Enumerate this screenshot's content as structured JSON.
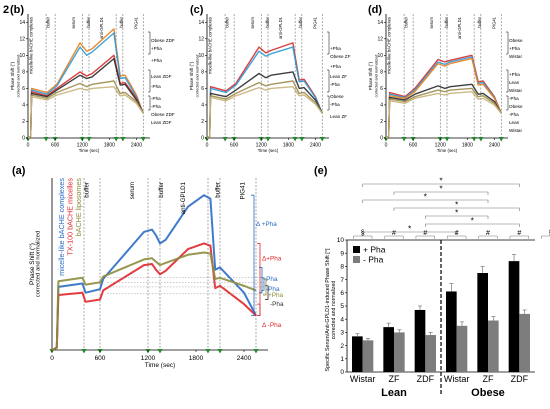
{
  "figure_number": "2",
  "panels": {
    "b": {
      "label": "(b)",
      "ylabel": [
        "Phase Shift (°)",
        "corrected and normalized"
      ],
      "xlabel": "Time (sec)",
      "xticks": [
        "0",
        "600",
        "1200",
        "1800",
        "2400"
      ],
      "yticks": [
        "0",
        "2",
        "4",
        "6",
        "8",
        "10",
        "12",
        "14"
      ],
      "steps": [
        "micelle-like bACHE complexes",
        "buffer",
        "serum",
        "buffer",
        "anti-GPLD1",
        "buffer",
        "PIG41"
      ],
      "annotations": [
        "Obese ZDF",
        "+Pha",
        "+Pha",
        "Lean ZDF",
        "-Pha",
        "-Pha",
        "-Pha",
        "Obese ZDF",
        "Lean ZDF"
      ]
    },
    "c": {
      "label": "(c)",
      "ylabel": [
        "Phase Shift (°)",
        "corrected and normalized"
      ],
      "xlabel": "Time (sec)",
      "xticks": [
        "0",
        "600",
        "1200",
        "1800",
        "2400"
      ],
      "yticks": [
        "0",
        "2",
        "4",
        "6",
        "8",
        "10",
        "12",
        "14"
      ],
      "steps": [
        "micelle-like bACHE complexes",
        "buffer",
        "serum",
        "buffer",
        "anti-GPLD1",
        "buffer",
        "PIG41"
      ],
      "annotations": [
        "+Pha",
        "Obese ZF",
        "+Pha",
        "Lean ZF",
        "-Pha",
        "Obese",
        "-Pha",
        "Lean ZF"
      ]
    },
    "d": {
      "label": "(d)",
      "ylabel": [
        "Phase Shift (°)",
        "corrected and normalized"
      ],
      "xlabel": "Time (sec)",
      "xticks": [
        "0",
        "600",
        "1200",
        "1800",
        "2400"
      ],
      "yticks": [
        "0",
        "2",
        "4",
        "6",
        "8",
        "10",
        "12",
        "14"
      ],
      "steps": [
        "micelle-like bACHE complexes",
        "buffer",
        "serum",
        "buffer",
        "anti-GPLD1",
        "buffer",
        "PIG41"
      ],
      "annotations": [
        "Obese",
        "+Pha",
        "Wistar",
        "+Pha",
        "Lean",
        "Wistar",
        "-Pha",
        "Obese",
        "-Pha",
        "Lean",
        "Wistar"
      ]
    },
    "a": {
      "label": "(a)",
      "ylabel": [
        "Phase Shift (°)",
        "corrected and normalized"
      ],
      "xlabel": "Time (sec)",
      "xticks": [
        "0",
        "600",
        "1200",
        "1800",
        "2400"
      ],
      "legend": [
        {
          "text": "micelle-like bACHE complexes",
          "color": "#2b6cc4"
        },
        {
          "text": "TX-100 bACHE micelles",
          "color": "#e0262a"
        },
        {
          "text": "bACHE liposomes",
          "color": "#8c8c3c"
        }
      ],
      "steps": [
        "buffer",
        "serum",
        "buffer",
        "anti-GPLD1",
        "buffer",
        "PIG41"
      ],
      "brackets": [
        "Δ +Pha",
        "Δ+Pha",
        "-Pha",
        "-Pha",
        "+Pha",
        "-Pha",
        "Δ -Pha"
      ]
    },
    "e": {
      "label": "(e)",
      "ylabel": [
        "Specific Serum/Anti-GPLD1-induced Phase Shift [°]",
        "corrected and normalized"
      ],
      "yticks": [
        "0",
        "1",
        "2",
        "3",
        "4",
        "5",
        "6",
        "7",
        "8",
        "9",
        "10"
      ],
      "legend": [
        "+ Pha",
        "- Pha"
      ],
      "groups": [
        "Lean",
        "Obese"
      ],
      "significance_marks": [
        "*",
        "*",
        "*",
        "*",
        "*",
        "*",
        "*",
        "§",
        "#",
        "#",
        "#",
        "#",
        "#",
        "§"
      ]
    }
  },
  "chart_data": [
    {
      "type": "line",
      "panel": "a",
      "xlabel": "Time (sec)",
      "ylabel": "Phase Shift (°) corrected and normalized",
      "xlim": [
        0,
        2700
      ],
      "ylim": [
        0,
        15
      ],
      "series": [
        {
          "name": "micelle-like bACHE complexes",
          "color": "#2b6cc4",
          "x": [
            0,
            60,
            80,
            380,
            420,
            600,
            640,
            1150,
            1250,
            1300,
            1350,
            1420,
            1700,
            1900,
            1980,
            2040,
            2100,
            2400,
            2550
          ],
          "y": [
            0,
            0.2,
            5.5,
            5.8,
            5.0,
            5.3,
            6.2,
            10.3,
            10.5,
            10.0,
            9.3,
            9.6,
            12.5,
            13.5,
            13.2,
            7.0,
            7.2,
            5.0,
            3.0
          ]
        },
        {
          "name": "TX-100 bACHE micelles",
          "color": "#e0262a",
          "x": [
            0,
            60,
            80,
            380,
            420,
            600,
            640,
            1150,
            1250,
            1300,
            1350,
            1420,
            1700,
            1900,
            1980,
            2040,
            2100,
            2400,
            2550
          ],
          "y": [
            0,
            0.2,
            4.8,
            5.0,
            4.2,
            4.4,
            5.2,
            7.4,
            7.5,
            7.0,
            6.6,
            6.9,
            8.8,
            9.3,
            9.1,
            5.4,
            5.6,
            4.0,
            3.0
          ]
        },
        {
          "name": "bACHE liposomes",
          "color": "#8c8c3c",
          "x": [
            0,
            60,
            80,
            380,
            420,
            600,
            640,
            1150,
            1250,
            1300,
            1350,
            1420,
            1700,
            1900,
            1980,
            2040,
            2100,
            2400,
            2550
          ],
          "y": [
            0,
            0.2,
            6.0,
            6.3,
            5.7,
            5.9,
            6.4,
            7.9,
            8.0,
            7.7,
            7.4,
            7.6,
            8.3,
            8.5,
            8.4,
            6.2,
            6.3,
            5.6,
            5.2
          ]
        }
      ]
    },
    {
      "type": "bar",
      "panel": "e",
      "categories": [
        "Wistar",
        "ZF",
        "ZDF",
        "Wistar",
        "ZF",
        "ZDF"
      ],
      "group_labels": [
        "Lean",
        "Lean",
        "Lean",
        "Obese",
        "Obese",
        "Obese"
      ],
      "ylim": [
        0,
        10
      ],
      "series": [
        {
          "name": "+ Pha",
          "color": "#000000",
          "values": [
            2.7,
            3.4,
            4.7,
            6.1,
            7.5,
            8.4
          ],
          "errors": [
            0.2,
            0.3,
            0.3,
            0.6,
            0.5,
            0.5
          ]
        },
        {
          "name": "- Pha",
          "color": "#7d7d7d",
          "values": [
            2.4,
            3.0,
            2.8,
            3.5,
            3.9,
            4.4
          ],
          "errors": [
            0.15,
            0.2,
            0.2,
            0.3,
            0.3,
            0.3
          ]
        }
      ]
    },
    {
      "type": "line",
      "panel": "b",
      "xlim": [
        0,
        2700
      ],
      "ylim": [
        0,
        15
      ],
      "series": [
        {
          "color": "#e8801c",
          "x": [
            0,
            60,
            80,
            420,
            640,
            1150,
            1300,
            1420,
            1900,
            2040,
            2150,
            2400,
            2550
          ],
          "y": [
            0,
            0.2,
            6.0,
            5.5,
            6.5,
            11.5,
            10.5,
            10.8,
            13.2,
            7.5,
            7.6,
            5.2,
            3.0
          ]
        },
        {
          "color": "#2a9ad6",
          "x": [
            0,
            60,
            80,
            420,
            640,
            1150,
            1300,
            1420,
            1900,
            2040,
            2150,
            2400,
            2550
          ],
          "y": [
            0,
            0.2,
            5.8,
            5.3,
            6.3,
            11.0,
            10.0,
            10.4,
            12.7,
            7.2,
            7.3,
            5.0,
            3.0
          ]
        },
        {
          "color": "#d62a2a",
          "x": [
            0,
            60,
            80,
            420,
            640,
            1150,
            1300,
            1420,
            1900,
            2040,
            2150,
            2400,
            2550
          ],
          "y": [
            0,
            0.2,
            5.6,
            5.1,
            6.0,
            8.0,
            7.5,
            7.8,
            10.0,
            6.6,
            6.7,
            4.8,
            3.0
          ]
        },
        {
          "color": "#2a2a2a",
          "x": [
            0,
            60,
            80,
            420,
            640,
            1150,
            1300,
            1420,
            1900,
            2040,
            2150,
            2400,
            2550
          ],
          "y": [
            0,
            0.2,
            5.4,
            5.0,
            5.8,
            7.6,
            7.2,
            7.4,
            9.6,
            6.4,
            6.5,
            4.6,
            3.0
          ]
        },
        {
          "color": "#9c8c4c",
          "x": [
            0,
            60,
            80,
            420,
            640,
            1150,
            1300,
            1420,
            1900,
            2040,
            2150,
            2400,
            2550
          ],
          "y": [
            0,
            0.2,
            5.2,
            4.8,
            5.5,
            6.6,
            6.2,
            6.5,
            6.9,
            5.4,
            5.5,
            4.4,
            3.0
          ]
        },
        {
          "color": "#c7b27a",
          "x": [
            0,
            60,
            80,
            420,
            640,
            1150,
            1300,
            1420,
            1900,
            2040,
            2150,
            2400,
            2550
          ],
          "y": [
            0,
            0.2,
            5.0,
            4.6,
            5.2,
            6.0,
            5.8,
            6.0,
            6.2,
            5.1,
            5.2,
            4.2,
            3.0
          ]
        }
      ]
    },
    {
      "type": "line",
      "panel": "c",
      "xlim": [
        0,
        2700
      ],
      "ylim": [
        0,
        15
      ],
      "series": [
        {
          "color": "#d62a2a",
          "x": [
            0,
            60,
            80,
            420,
            640,
            1150,
            1300,
            1420,
            1900,
            2040,
            2150,
            2400,
            2550
          ],
          "y": [
            0,
            0.2,
            6.2,
            5.7,
            6.6,
            11.0,
            10.3,
            10.6,
            11.5,
            7.0,
            7.1,
            5.0,
            3.0
          ]
        },
        {
          "color": "#2a9ad6",
          "x": [
            0,
            60,
            80,
            420,
            640,
            1150,
            1300,
            1420,
            1900,
            2040,
            2150,
            2400,
            2550
          ],
          "y": [
            0,
            0.2,
            6.0,
            5.5,
            6.4,
            10.5,
            9.9,
            10.2,
            11.0,
            6.8,
            6.9,
            4.9,
            3.0
          ]
        },
        {
          "color": "#2a2a2a",
          "x": [
            0,
            60,
            80,
            420,
            640,
            1150,
            1300,
            1420,
            1900,
            2040,
            2150,
            2400,
            2550
          ],
          "y": [
            0,
            0.2,
            5.4,
            5.0,
            5.8,
            7.8,
            7.3,
            7.6,
            8.0,
            6.0,
            6.1,
            4.6,
            3.0
          ]
        },
        {
          "color": "#9c8c4c",
          "x": [
            0,
            60,
            80,
            420,
            640,
            1150,
            1300,
            1420,
            1900,
            2040,
            2150,
            2400,
            2550
          ],
          "y": [
            0,
            0.2,
            5.1,
            4.7,
            5.4,
            6.7,
            6.3,
            6.5,
            6.9,
            5.4,
            5.5,
            4.3,
            3.0
          ]
        },
        {
          "color": "#c7b27a",
          "x": [
            0,
            60,
            80,
            420,
            640,
            1150,
            1300,
            1420,
            1900,
            2040,
            2150,
            2400,
            2550
          ],
          "y": [
            0,
            0.2,
            4.9,
            4.5,
            5.1,
            6.1,
            5.8,
            6.0,
            6.2,
            5.1,
            5.2,
            4.1,
            3.0
          ]
        }
      ]
    },
    {
      "type": "line",
      "panel": "d",
      "xlim": [
        0,
        2700
      ],
      "ylim": [
        0,
        15
      ],
      "series": [
        {
          "color": "#d62a2a",
          "x": [
            0,
            60,
            80,
            420,
            640,
            1150,
            1300,
            1420,
            1900,
            2040,
            2150,
            2400,
            2550
          ],
          "y": [
            0,
            0.2,
            5.5,
            5.0,
            6.0,
            9.5,
            9.2,
            9.4,
            10.0,
            6.8,
            6.9,
            5.0,
            3.0
          ]
        },
        {
          "color": "#2a9ad6",
          "x": [
            0,
            60,
            80,
            420,
            640,
            1150,
            1300,
            1420,
            1900,
            2040,
            2150,
            2400,
            2550
          ],
          "y": [
            0,
            0.2,
            5.3,
            4.9,
            5.8,
            9.2,
            8.9,
            9.2,
            9.8,
            6.6,
            6.7,
            4.9,
            3.0
          ]
        },
        {
          "color": "#e8801c",
          "x": [
            0,
            60,
            80,
            420,
            640,
            1150,
            1300,
            1420,
            1900,
            2040,
            2150,
            2400,
            2550
          ],
          "y": [
            0,
            0.2,
            5.1,
            4.8,
            5.6,
            9.0,
            8.7,
            9.0,
            9.6,
            6.4,
            6.5,
            4.8,
            3.0
          ]
        },
        {
          "color": "#2a2a2a",
          "x": [
            0,
            60,
            80,
            420,
            640,
            1150,
            1300,
            1420,
            1900,
            2040,
            2150,
            2400,
            2550
          ],
          "y": [
            0,
            0.2,
            4.9,
            4.6,
            5.3,
            6.3,
            6.0,
            6.2,
            6.5,
            5.3,
            5.4,
            4.4,
            3.0
          ]
        },
        {
          "color": "#9c8c4c",
          "x": [
            0,
            60,
            80,
            420,
            640,
            1150,
            1300,
            1420,
            1900,
            2040,
            2150,
            2400,
            2550
          ],
          "y": [
            0,
            0.2,
            4.7,
            4.4,
            5.0,
            5.8,
            5.6,
            5.8,
            6.0,
            5.0,
            5.1,
            4.2,
            3.0
          ]
        },
        {
          "color": "#c7b27a",
          "x": [
            0,
            60,
            80,
            420,
            640,
            1150,
            1300,
            1420,
            1900,
            2040,
            2150,
            2400,
            2550
          ],
          "y": [
            0,
            0.2,
            4.5,
            4.2,
            4.8,
            5.4,
            5.2,
            5.4,
            5.6,
            4.7,
            4.8,
            4.0,
            3.0
          ]
        }
      ]
    }
  ]
}
